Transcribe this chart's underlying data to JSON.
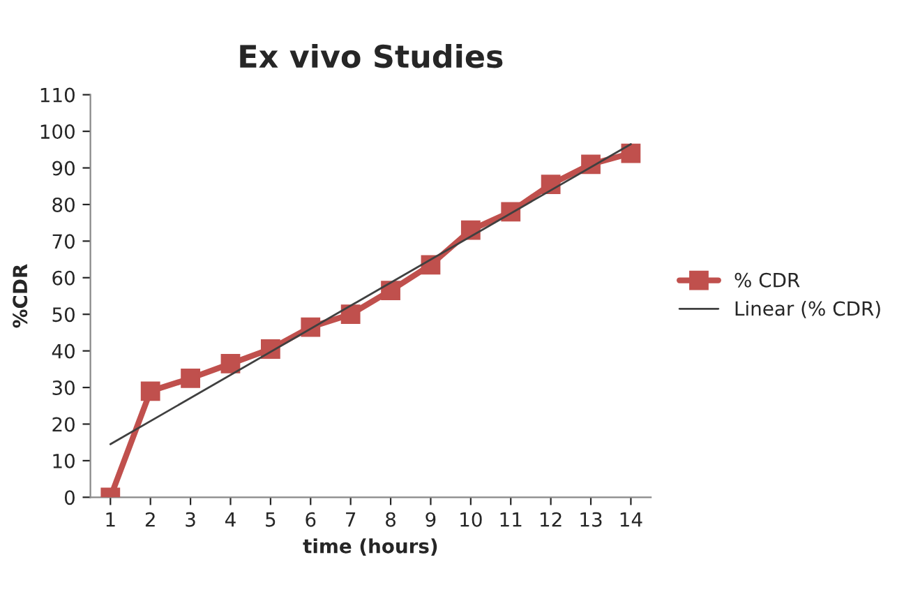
{
  "chart_data": {
    "type": "line",
    "title": "Ex vivo Studies",
    "xlabel": "time (hours)",
    "ylabel": "%CDR",
    "x": [
      1,
      2,
      3,
      4,
      5,
      6,
      7,
      8,
      9,
      10,
      11,
      12,
      13,
      14
    ],
    "xlim": [
      0.5,
      14.5
    ],
    "xticks": [
      1,
      2,
      3,
      4,
      5,
      6,
      7,
      8,
      9,
      10,
      11,
      12,
      13,
      14
    ],
    "ylim": [
      0,
      110
    ],
    "yticks": [
      0,
      10,
      20,
      30,
      40,
      50,
      60,
      70,
      80,
      90,
      100,
      110
    ],
    "series": [
      {
        "name": "% CDR",
        "color": "#c0504d",
        "marker": "square",
        "values": [
          0,
          29,
          32.5,
          36.5,
          40.5,
          46.5,
          50,
          56.5,
          63.5,
          73,
          78,
          85.5,
          91,
          94
        ]
      },
      {
        "name": "Linear (% CDR)",
        "color": "#404040",
        "marker": "none",
        "x": [
          1,
          14
        ],
        "values": [
          14.5,
          96.5
        ]
      }
    ],
    "grid": false,
    "legend": "right",
    "line_style": "solid"
  }
}
